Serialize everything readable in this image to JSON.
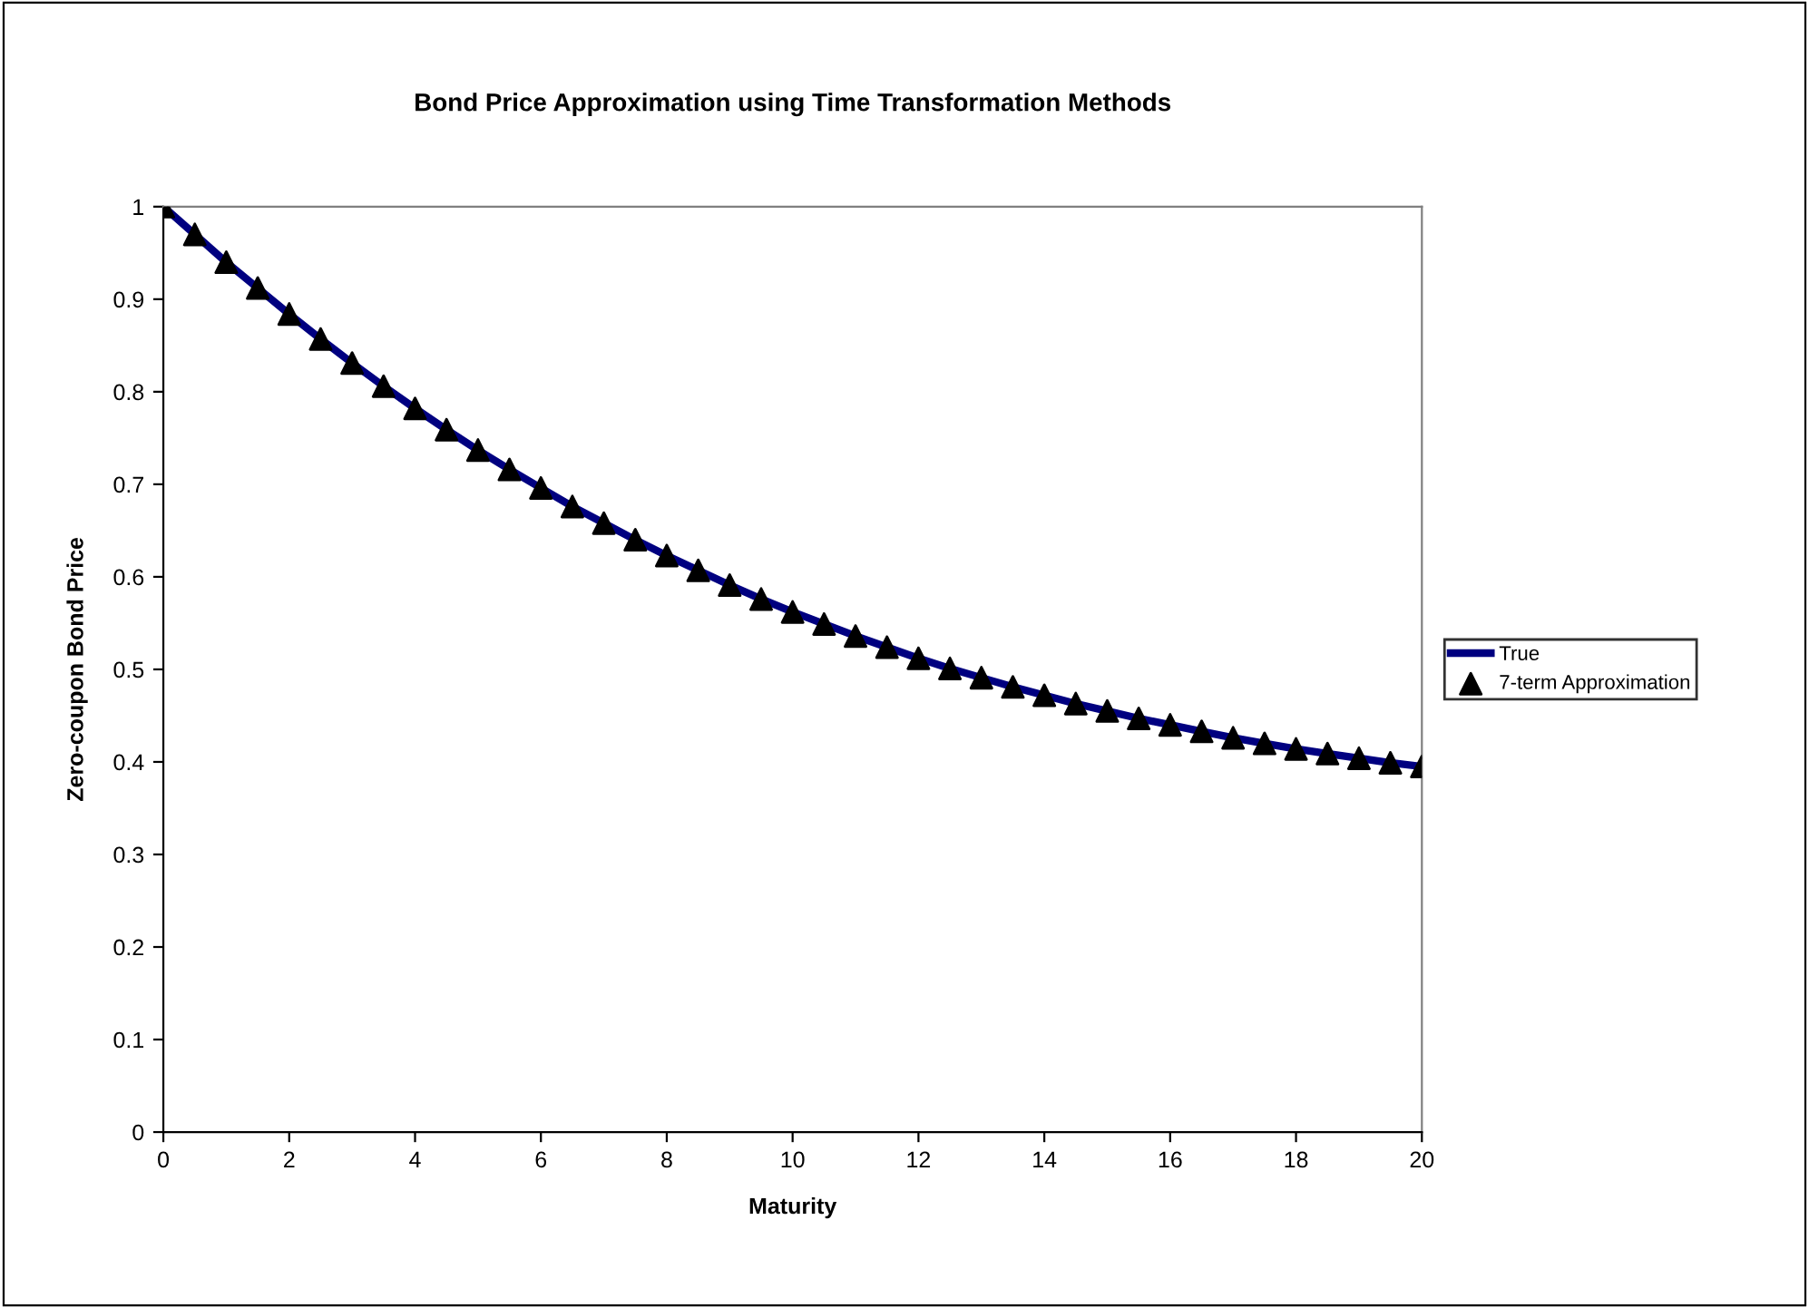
{
  "chart_data": {
    "type": "line",
    "title": "Bond Price Approximation using Time Transformation Methods",
    "xlabel": "Maturity",
    "ylabel": "Zero-coupon Bond Price",
    "x": [
      0,
      0.5,
      1,
      1.5,
      2,
      2.5,
      3,
      3.5,
      4,
      4.5,
      5,
      5.5,
      6,
      6.5,
      7,
      7.5,
      8,
      8.5,
      9,
      9.5,
      10,
      10.5,
      11,
      11.5,
      12,
      12.5,
      13,
      13.5,
      14,
      14.5,
      15,
      15.5,
      16,
      16.5,
      17,
      17.5,
      18,
      18.5,
      19,
      19.5,
      20
    ],
    "series": [
      {
        "name": "True",
        "color": "#000080",
        "marker": "none",
        "line_style": "solid",
        "values": [
          1,
          0.97,
          0.94,
          0.912,
          0.884,
          0.857,
          0.831,
          0.806,
          0.782,
          0.759,
          0.737,
          0.716,
          0.696,
          0.676,
          0.658,
          0.64,
          0.623,
          0.607,
          0.591,
          0.576,
          0.562,
          0.549,
          0.536,
          0.524,
          0.512,
          0.501,
          0.491,
          0.481,
          0.472,
          0.463,
          0.455,
          0.447,
          0.44,
          0.433,
          0.426,
          0.42,
          0.414,
          0.409,
          0.404,
          0.399,
          0.395
        ]
      },
      {
        "name": "7-term Approximation",
        "type": "scatter",
        "color": "#000000",
        "marker": "triangle",
        "values": [
          1,
          0.97,
          0.94,
          0.912,
          0.884,
          0.857,
          0.831,
          0.806,
          0.782,
          0.759,
          0.737,
          0.716,
          0.696,
          0.676,
          0.658,
          0.64,
          0.623,
          0.607,
          0.591,
          0.576,
          0.562,
          0.549,
          0.536,
          0.524,
          0.512,
          0.501,
          0.491,
          0.481,
          0.472,
          0.463,
          0.455,
          0.447,
          0.44,
          0.433,
          0.426,
          0.42,
          0.414,
          0.409,
          0.404,
          0.399,
          0.395
        ]
      }
    ],
    "xlim": [
      0,
      20
    ],
    "xticks": [
      0,
      2,
      4,
      6,
      8,
      10,
      12,
      14,
      16,
      18,
      20
    ],
    "ylim": [
      0,
      1
    ],
    "yticks": [
      0,
      0.1,
      0.2,
      0.3,
      0.4,
      0.5,
      0.6,
      0.7,
      0.8,
      0.9,
      1
    ],
    "grid": false,
    "legend": "right"
  }
}
